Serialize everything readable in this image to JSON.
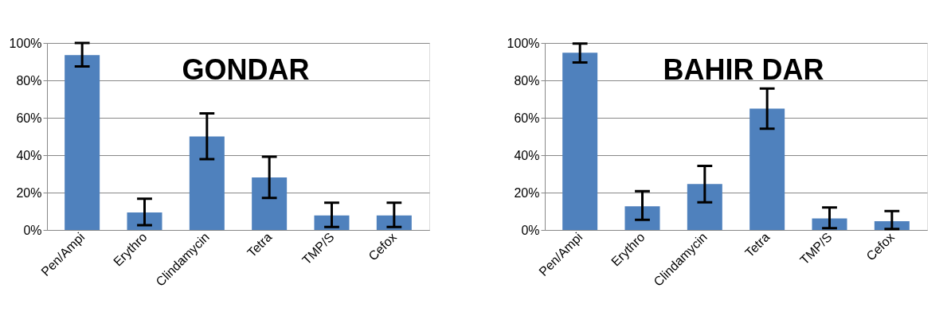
{
  "chart_data": [
    {
      "type": "bar",
      "title": "GONDAR",
      "categories": [
        "Pen/Ampi",
        "Erythro",
        "Clindamycin",
        "Tetra",
        "TMP/S",
        "Cefox"
      ],
      "series": [
        {
          "color": "#4f81bd",
          "values": [
            93.5,
            9.4,
            50,
            28.1,
            7.8,
            7.8
          ],
          "errors": [
            [
              87.5,
              100
            ],
            [
              2.6,
              16.7
            ],
            [
              37.9,
              62.3
            ],
            [
              17.1,
              39.2
            ],
            [
              1.6,
              14.6
            ],
            [
              1.6,
              14.6
            ]
          ]
        }
      ],
      "ylim": [
        0,
        100
      ],
      "yticks": [
        {
          "value": 0,
          "label": "0%"
        },
        {
          "value": 20,
          "label": "20%"
        },
        {
          "value": 40,
          "label": "40%"
        },
        {
          "value": 60,
          "label": "60%"
        },
        {
          "value": 80,
          "label": "80%"
        },
        {
          "value": 100,
          "label": "100%"
        }
      ],
      "grid": "y",
      "legend": false
    },
    {
      "type": "bar",
      "title": "BAHIR DAR",
      "categories": [
        "Pen/Ampi",
        "Erythro",
        "Clindamycin",
        "Tetra",
        "TMP/S",
        "Cefox"
      ],
      "series": [
        {
          "color": "#4f81bd",
          "values": [
            94.8,
            12.7,
            24.6,
            64.9,
            6.2,
            4.7
          ],
          "errors": [
            [
              89.6,
              99.7
            ],
            [
              5.4,
              20.7
            ],
            [
              14.8,
              34.3
            ],
            [
              54.1,
              75.6
            ],
            [
              1,
              12
            ],
            [
              0.5,
              10.1
            ]
          ]
        }
      ],
      "ylim": [
        0,
        100
      ],
      "yticks": [
        {
          "value": 0,
          "label": "0%"
        },
        {
          "value": 20,
          "label": "20%"
        },
        {
          "value": 40,
          "label": "40%"
        },
        {
          "value": 60,
          "label": "60%"
        },
        {
          "value": 80,
          "label": "80%"
        },
        {
          "value": 100,
          "label": "100%"
        }
      ],
      "grid": "y",
      "legend": false
    }
  ]
}
